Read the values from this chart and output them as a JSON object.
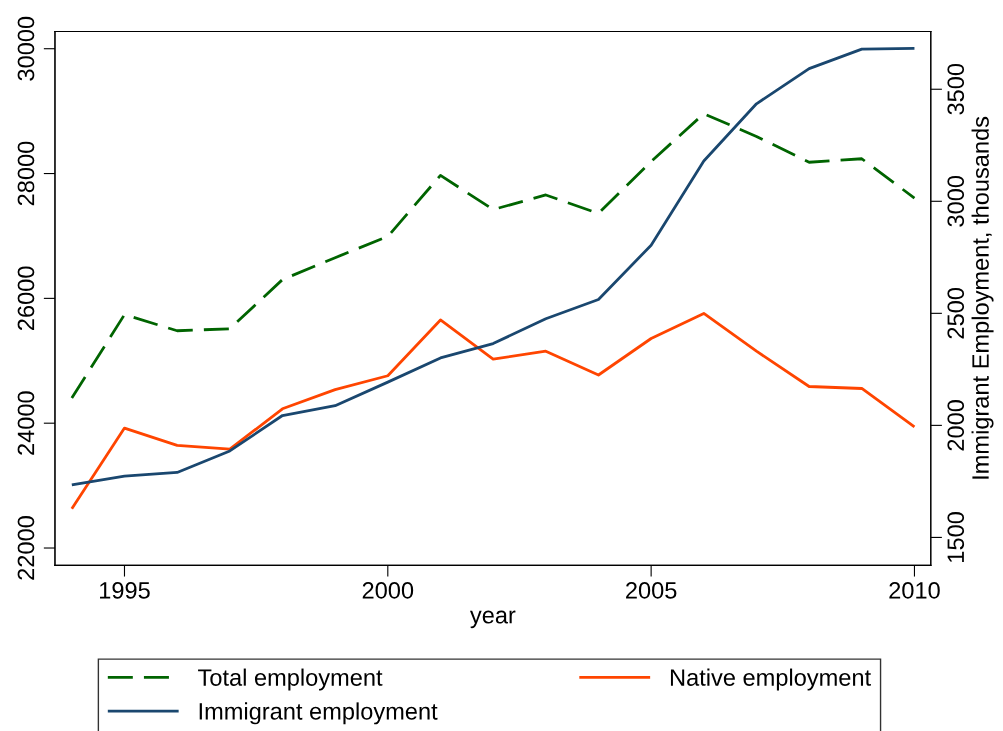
{
  "chart_data": {
    "type": "line",
    "xlabel": "year",
    "y2label": "Immigrant Employment, thousands",
    "x": [
      1994,
      1995,
      1996,
      1997,
      1998,
      1999,
      2000,
      2001,
      2002,
      2003,
      2004,
      2005,
      2006,
      2007,
      2008,
      2009,
      2010
    ],
    "series": [
      {
        "name": "Total employment",
        "color": "#006400",
        "line_style": "dashed",
        "values": [
          24402,
          25740,
          25481,
          25513,
          26301,
          26652,
          26992,
          27971,
          27423,
          27657,
          27361,
          28194,
          28958,
          28595,
          28181,
          28237,
          27607
        ]
      },
      {
        "name": "Immigrant employment",
        "color": "#1a476f",
        "line_style": "solid",
        "axis": "y2",
        "values": [
          1735,
          1774,
          1790,
          1886,
          2044,
          2088,
          2193,
          2301,
          2365,
          2476,
          2562,
          2804,
          3180,
          3435,
          3592,
          3679,
          3682
        ]
      },
      {
        "name": "Native employment",
        "color": "#ff4500",
        "line_style": "solid",
        "values": [
          22628,
          23922,
          23644,
          23583,
          24231,
          24538,
          24760,
          25654,
          25026,
          25154,
          24772,
          25357,
          25758,
          25154,
          24588,
          24556,
          23941
        ]
      }
    ],
    "xlim": [
      1993.68,
      2010.31
    ],
    "xticks": [
      1995,
      2000,
      2005,
      2010
    ],
    "ylim": [
      21721,
      30277
    ],
    "yticks": [
      22000,
      24000,
      26000,
      28000,
      30000
    ],
    "y2lim": [
      1375,
      3758
    ],
    "y2ticks": [
      1500,
      2000,
      2500,
      3000,
      3500
    ],
    "grid": false,
    "legend": "bottom",
    "marker": "none"
  }
}
